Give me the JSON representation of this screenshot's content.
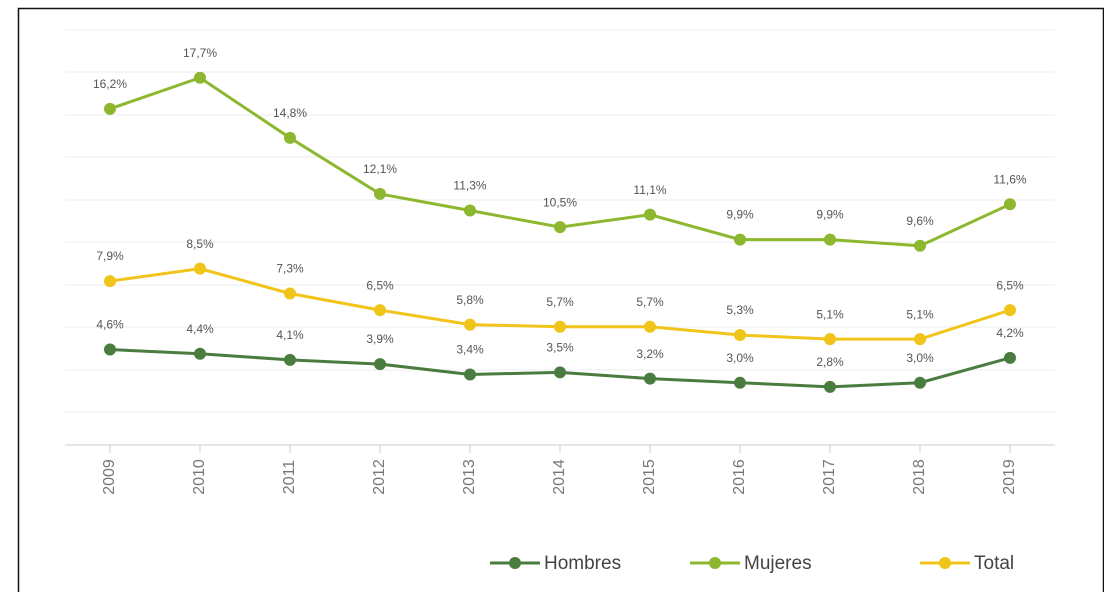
{
  "chart_data": {
    "type": "line",
    "categories": [
      "2009",
      "2010",
      "2011",
      "2012",
      "2013",
      "2014",
      "2015",
      "2016",
      "2017",
      "2018",
      "2019"
    ],
    "series": [
      {
        "name": "Hombres",
        "color": "#4a7c3f",
        "values": [
          4.6,
          4.4,
          4.1,
          3.9,
          3.4,
          3.5,
          3.2,
          3.0,
          2.8,
          3.0,
          4.2
        ],
        "value_labels": [
          "4,6%",
          "4,4%",
          "4,1%",
          "3,9%",
          "3,4%",
          "3,5%",
          "3,2%",
          "3,0%",
          "2,8%",
          "3,0%",
          "4,2%"
        ]
      },
      {
        "name": "Mujeres",
        "color": "#8db72e",
        "values": [
          16.2,
          17.7,
          14.8,
          12.1,
          11.3,
          10.5,
          11.1,
          9.9,
          9.9,
          9.6,
          11.6
        ],
        "value_labels": [
          "16,2%",
          "17,7%",
          "14,8%",
          "12,1%",
          "11,3%",
          "10,5%",
          "11,1%",
          "9,9%",
          "9,9%",
          "9,6%",
          "11,6%"
        ]
      },
      {
        "name": "Total",
        "color": "#f0c419",
        "values": [
          7.9,
          8.5,
          7.3,
          6.5,
          5.8,
          5.7,
          5.7,
          5.3,
          5.1,
          5.1,
          6.5
        ],
        "value_labels": [
          "7,9%",
          "8,5%",
          "7,3%",
          "6,5%",
          "5,8%",
          "5,7%",
          "5,7%",
          "5,3%",
          "5,1%",
          "5,1%",
          "6,5%"
        ]
      }
    ],
    "ylim": [
      0,
      20
    ],
    "grid": true,
    "legend": "bottom"
  }
}
